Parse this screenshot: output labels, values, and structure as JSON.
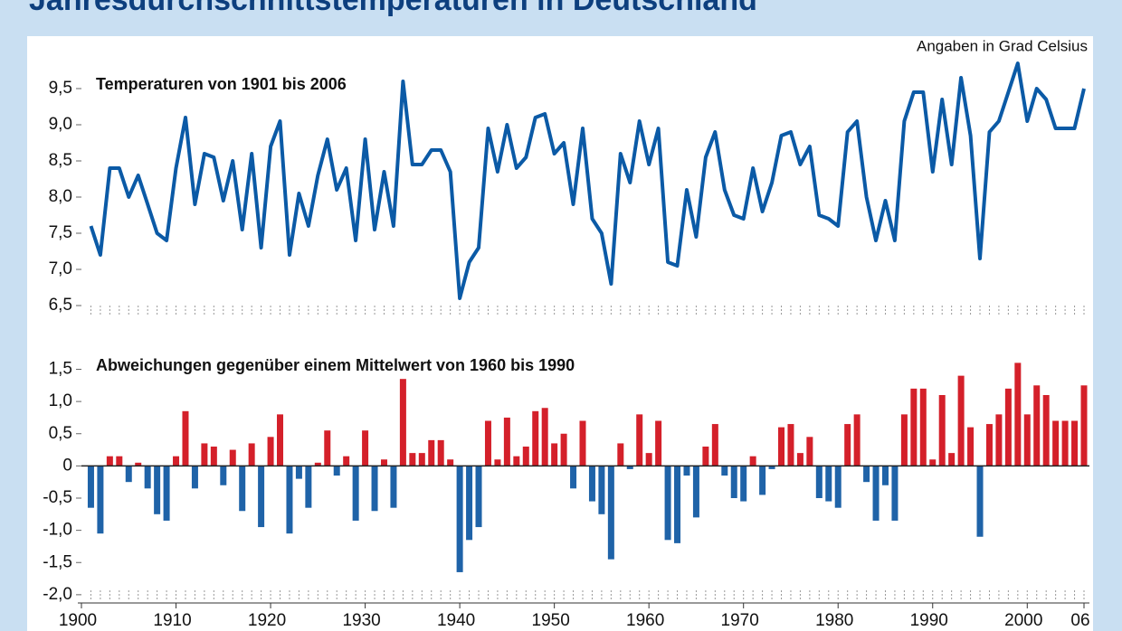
{
  "title": "Jahresdurchschnittstemperaturen in Deutschland",
  "annotation": "Angaben in Grad Celsius",
  "chart_data": [
    {
      "type": "line",
      "title": "Temperaturen von 1901 bis 2006",
      "color": "#0b5aa6",
      "x": [
        1901,
        1902,
        1903,
        1904,
        1905,
        1906,
        1907,
        1908,
        1909,
        1910,
        1911,
        1912,
        1913,
        1914,
        1915,
        1916,
        1917,
        1918,
        1919,
        1920,
        1921,
        1922,
        1923,
        1924,
        1925,
        1926,
        1927,
        1928,
        1929,
        1930,
        1931,
        1932,
        1933,
        1934,
        1935,
        1936,
        1937,
        1938,
        1939,
        1940,
        1941,
        1942,
        1943,
        1944,
        1945,
        1946,
        1947,
        1948,
        1949,
        1950,
        1951,
        1952,
        1953,
        1954,
        1955,
        1956,
        1957,
        1958,
        1959,
        1960,
        1961,
        1962,
        1963,
        1964,
        1965,
        1966,
        1967,
        1968,
        1969,
        1970,
        1971,
        1972,
        1973,
        1974,
        1975,
        1976,
        1977,
        1978,
        1979,
        1980,
        1981,
        1982,
        1983,
        1984,
        1985,
        1986,
        1987,
        1988,
        1989,
        1990,
        1991,
        1992,
        1993,
        1994,
        1995,
        1996,
        1997,
        1998,
        1999,
        2000,
        2001,
        2002,
        2003,
        2004,
        2005,
        2006
      ],
      "values": [
        7.6,
        7.2,
        8.4,
        8.4,
        8.0,
        8.3,
        7.9,
        7.5,
        7.4,
        8.4,
        9.1,
        7.9,
        8.6,
        8.55,
        7.95,
        8.5,
        7.55,
        8.6,
        7.3,
        8.7,
        9.05,
        7.2,
        8.05,
        7.6,
        8.3,
        8.8,
        8.1,
        8.4,
        7.4,
        8.8,
        7.55,
        8.35,
        7.6,
        9.6,
        8.45,
        8.45,
        8.65,
        8.65,
        8.35,
        6.6,
        7.1,
        7.3,
        8.95,
        8.35,
        9.0,
        8.4,
        8.55,
        9.1,
        9.15,
        8.6,
        8.75,
        7.9,
        8.95,
        7.7,
        7.5,
        6.8,
        8.6,
        8.2,
        9.05,
        8.45,
        8.95,
        7.1,
        7.05,
        8.1,
        7.45,
        8.55,
        8.9,
        8.1,
        7.75,
        7.7,
        8.4,
        7.8,
        8.2,
        8.85,
        8.9,
        8.45,
        8.7,
        7.75,
        7.7,
        7.6,
        8.9,
        9.05,
        8.0,
        7.4,
        7.95,
        7.4,
        9.05,
        9.45,
        9.45,
        8.35,
        9.35,
        8.45,
        9.65,
        8.85,
        7.15,
        8.9,
        9.05,
        9.45,
        9.85,
        9.05,
        9.5,
        9.35,
        8.95,
        8.95,
        8.95,
        9.5
      ],
      "xlim": [
        1900,
        2006
      ],
      "ylim": [
        6.35,
        9.85
      ],
      "yticks": [
        {
          "value": 6.5,
          "label": "6,5"
        },
        {
          "value": 7.0,
          "label": "7,0"
        },
        {
          "value": 7.5,
          "label": "7,5"
        },
        {
          "value": 8.0,
          "label": "8,0"
        },
        {
          "value": 8.5,
          "label": "8,5"
        },
        {
          "value": 9.0,
          "label": "9,0"
        },
        {
          "value": 9.5,
          "label": "9,5"
        }
      ]
    },
    {
      "type": "bar",
      "title": "Abweichungen gegenüber einem Mittelwert von 1960 bis 1990",
      "positive_color": "#d4202a",
      "negative_color": "#1f63a8",
      "x": [
        1901,
        1902,
        1903,
        1904,
        1905,
        1906,
        1907,
        1908,
        1909,
        1910,
        1911,
        1912,
        1913,
        1914,
        1915,
        1916,
        1917,
        1918,
        1919,
        1920,
        1921,
        1922,
        1923,
        1924,
        1925,
        1926,
        1927,
        1928,
        1929,
        1930,
        1931,
        1932,
        1933,
        1934,
        1935,
        1936,
        1937,
        1938,
        1939,
        1940,
        1941,
        1942,
        1943,
        1944,
        1945,
        1946,
        1947,
        1948,
        1949,
        1950,
        1951,
        1952,
        1953,
        1954,
        1955,
        1956,
        1957,
        1958,
        1959,
        1960,
        1961,
        1962,
        1963,
        1964,
        1965,
        1966,
        1967,
        1968,
        1969,
        1970,
        1971,
        1972,
        1973,
        1974,
        1975,
        1976,
        1977,
        1978,
        1979,
        1980,
        1981,
        1982,
        1983,
        1984,
        1985,
        1986,
        1987,
        1988,
        1989,
        1990,
        1991,
        1992,
        1993,
        1994,
        1995,
        1996,
        1997,
        1998,
        1999,
        2000,
        2001,
        2002,
        2003,
        2004,
        2005,
        2006
      ],
      "values": [
        -0.65,
        -1.05,
        0.15,
        0.15,
        -0.25,
        0.05,
        -0.35,
        -0.75,
        -0.85,
        0.15,
        0.85,
        -0.35,
        0.35,
        0.3,
        -0.3,
        0.25,
        -0.7,
        0.35,
        -0.95,
        0.45,
        0.8,
        -1.05,
        -0.2,
        -0.65,
        0.05,
        0.55,
        -0.15,
        0.15,
        -0.85,
        0.55,
        -0.7,
        0.1,
        -0.65,
        1.35,
        0.2,
        0.2,
        0.4,
        0.4,
        0.1,
        -1.65,
        -1.15,
        -0.95,
        0.7,
        0.1,
        0.75,
        0.15,
        0.3,
        0.85,
        0.9,
        0.35,
        0.5,
        -0.35,
        0.7,
        -0.55,
        -0.75,
        -1.45,
        0.35,
        -0.05,
        0.8,
        0.2,
        0.7,
        -1.15,
        -1.2,
        -0.15,
        -0.8,
        0.3,
        0.65,
        -0.15,
        -0.5,
        -0.55,
        0.15,
        -0.45,
        -0.05,
        0.6,
        0.65,
        0.2,
        0.45,
        -0.5,
        -0.55,
        -0.65,
        0.65,
        0.8,
        -0.25,
        -0.85,
        -0.3,
        -0.85,
        0.8,
        1.2,
        1.2,
        0.1,
        1.1,
        0.2,
        1.4,
        0.6,
        -1.1,
        0.65,
        0.8,
        1.2,
        1.6,
        0.8,
        1.25,
        1.1,
        0.7,
        0.7,
        0.7,
        1.25
      ],
      "xlim": [
        1900,
        2006
      ],
      "ylim": [
        -2.1,
        1.9
      ],
      "yticks": [
        {
          "value": -2.0,
          "label": "-2,0"
        },
        {
          "value": -1.5,
          "label": "-1,5"
        },
        {
          "value": -1.0,
          "label": "-1,0"
        },
        {
          "value": -0.5,
          "label": "-0,5"
        },
        0,
        {
          "value": 0.5,
          "label": "0,5"
        },
        {
          "value": 1.0,
          "label": "1,0"
        },
        {
          "value": 1.5,
          "label": "1,5"
        }
      ],
      "xticks": [
        1900,
        1910,
        1920,
        1930,
        1940,
        1950,
        1960,
        1970,
        1980,
        1990,
        2000,
        {
          "value": 2006,
          "label": "06"
        }
      ]
    }
  ]
}
